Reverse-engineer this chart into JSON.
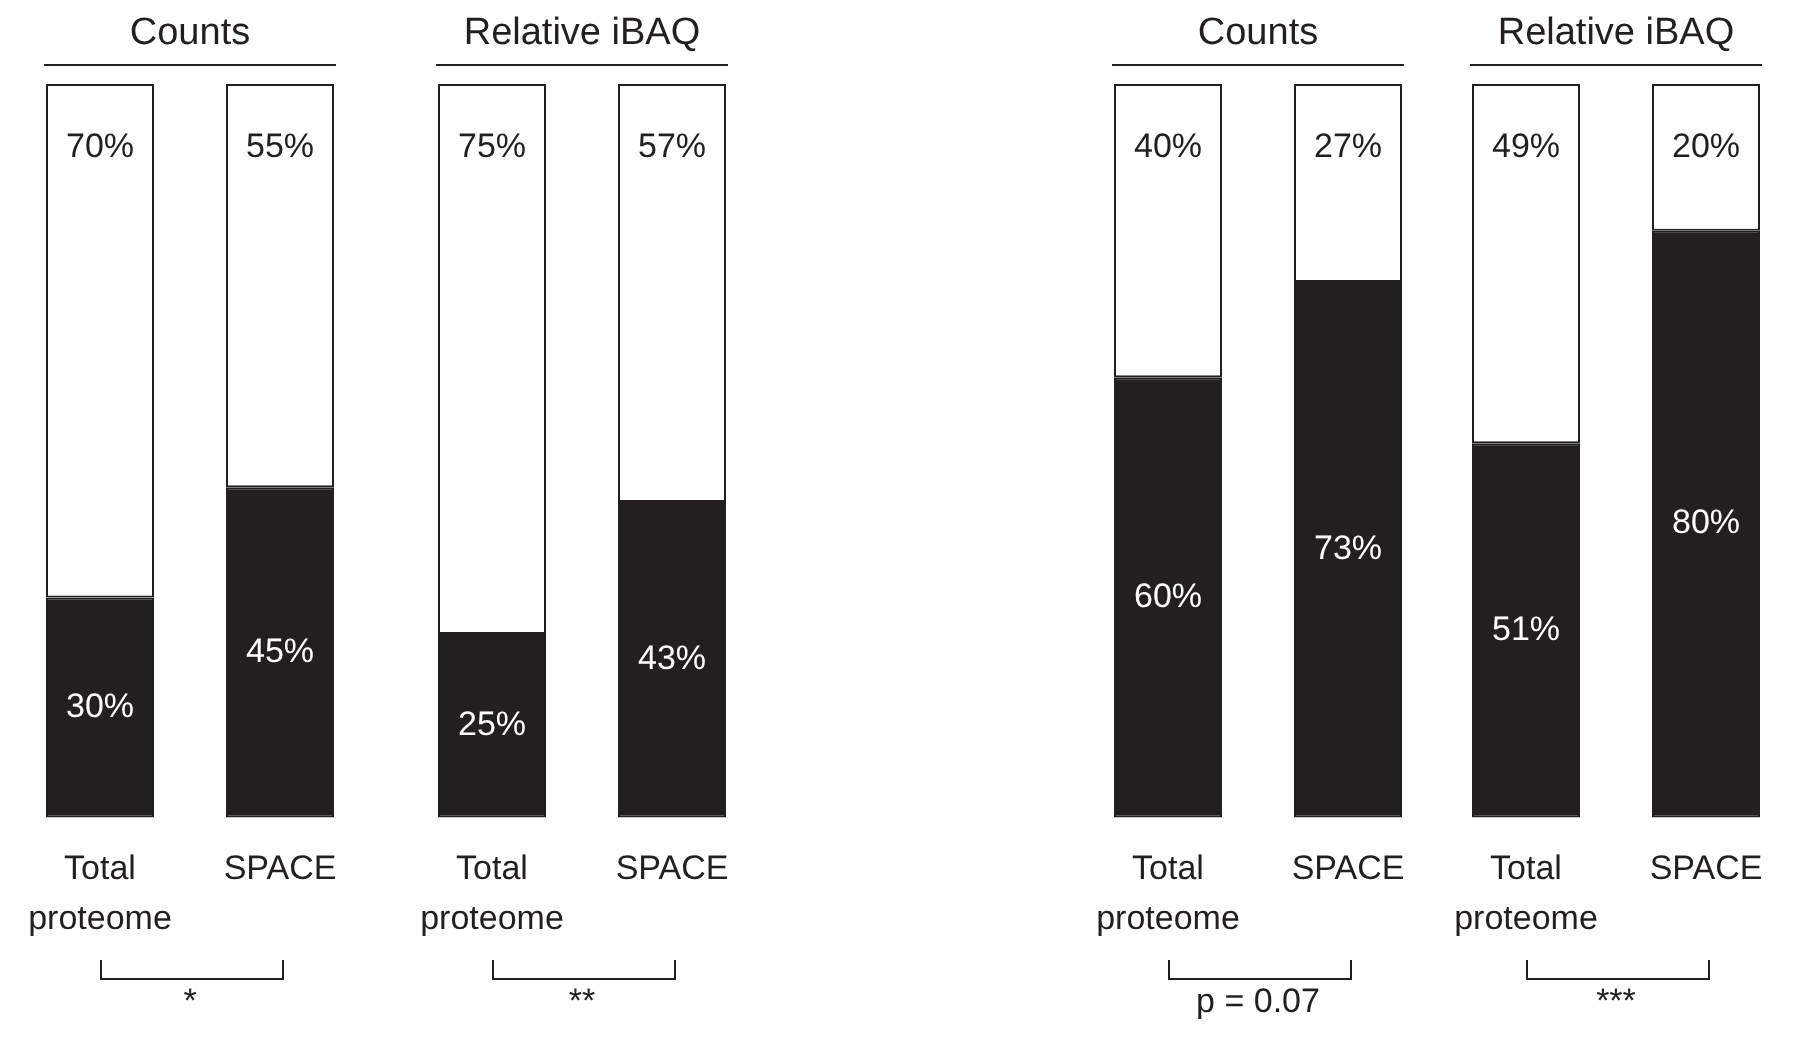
{
  "chart_data": [
    {
      "type": "bar",
      "title": "Counts",
      "categories": [
        "Total proteome",
        "SPACE"
      ],
      "stacked": true,
      "ylim": [
        0,
        100
      ],
      "tick_labels": "x",
      "grid": false,
      "legend": false,
      "annotations": [
        "*"
      ],
      "series": [
        {
          "color": "#231f20",
          "values": [
            30,
            45
          ],
          "value_labels": [
            "30%",
            "45%"
          ]
        },
        {
          "color": "#ffffff",
          "values": [
            70,
            55
          ],
          "value_labels": [
            "70%",
            "55%"
          ]
        }
      ]
    },
    {
      "type": "bar",
      "title": "Relative iBAQ",
      "categories": [
        "Total proteome",
        "SPACE"
      ],
      "stacked": true,
      "ylim": [
        0,
        100
      ],
      "tick_labels": "x",
      "grid": false,
      "legend": false,
      "annotations": [
        "**"
      ],
      "series": [
        {
          "color": "#231f20",
          "values": [
            25,
            43
          ],
          "value_labels": [
            "25%",
            "43%"
          ]
        },
        {
          "color": "#ffffff",
          "values": [
            75,
            57
          ],
          "value_labels": [
            "75%",
            "57%"
          ]
        }
      ]
    },
    {
      "type": "bar",
      "title": "Counts",
      "categories": [
        "Total proteome",
        "SPACE"
      ],
      "stacked": true,
      "ylim": [
        0,
        100
      ],
      "tick_labels": "x",
      "grid": false,
      "legend": false,
      "annotations": [
        "p = 0.07"
      ],
      "series": [
        {
          "color": "#231f20",
          "values": [
            60,
            73
          ],
          "value_labels": [
            "60%",
            "73%"
          ]
        },
        {
          "color": "#ffffff",
          "values": [
            40,
            27
          ],
          "value_labels": [
            "40%",
            "27%"
          ]
        }
      ]
    },
    {
      "type": "bar",
      "title": "Relative iBAQ",
      "categories": [
        "Total proteome",
        "SPACE"
      ],
      "stacked": true,
      "ylim": [
        0,
        100
      ],
      "tick_labels": "x",
      "grid": false,
      "legend": false,
      "annotations": [
        "***"
      ],
      "series": [
        {
          "color": "#231f20",
          "values": [
            51,
            80
          ],
          "value_labels": [
            "51%",
            "80%"
          ]
        },
        {
          "color": "#ffffff",
          "values": [
            49,
            20
          ],
          "value_labels": [
            "49%",
            "20%"
          ]
        }
      ]
    }
  ]
}
